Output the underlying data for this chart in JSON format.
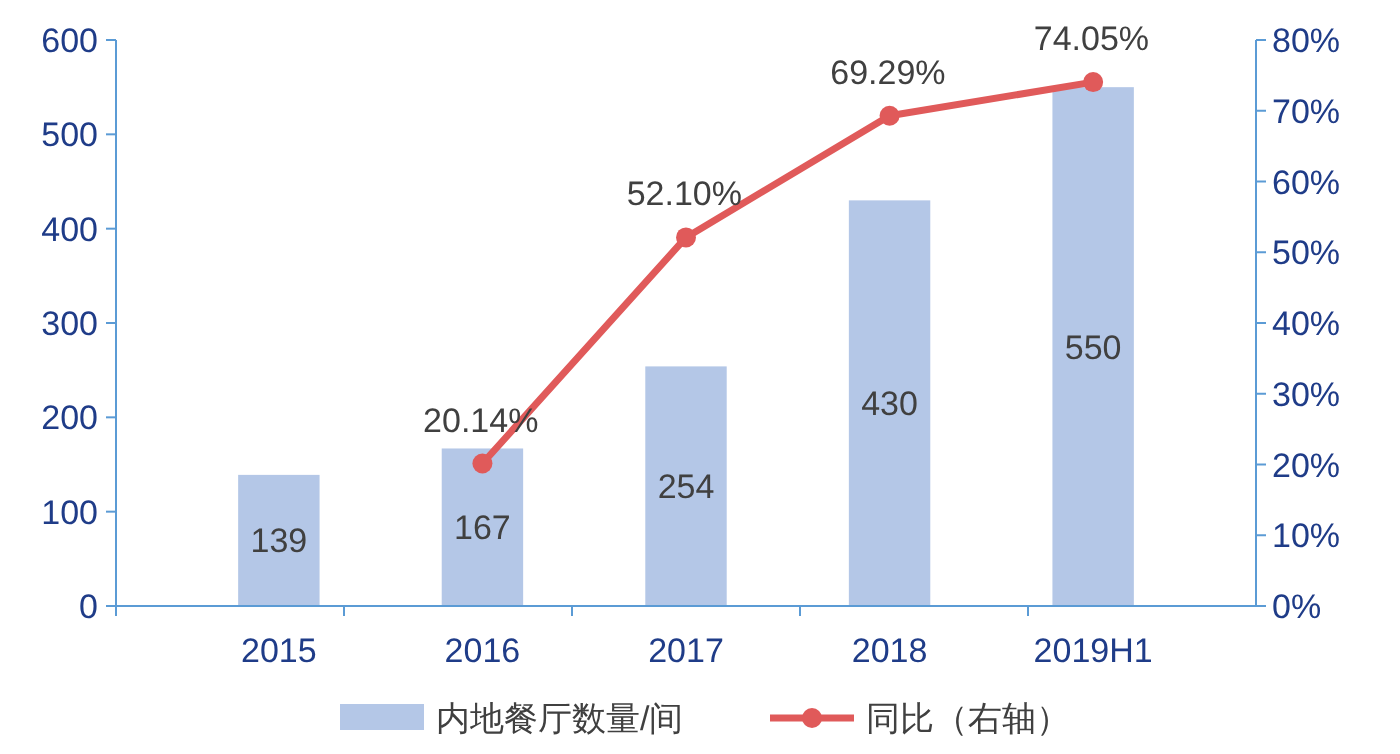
{
  "chart_data": {
    "type": "bar",
    "categories": [
      "2015",
      "2016",
      "2017",
      "2018",
      "2019H1"
    ],
    "series": [
      {
        "name": "内地餐厅数量/间",
        "color": "#b4c7e7",
        "values": [
          139,
          167,
          254,
          430,
          550
        ],
        "value_labels": [
          "139",
          "167",
          "254",
          "430",
          "550"
        ]
      },
      {
        "name": "同比（右轴）",
        "type": "line",
        "axis": "y2",
        "color": "#e05a5a",
        "values": [
          null,
          20.14,
          52.1,
          69.29,
          74.05
        ],
        "value_labels": [
          null,
          "20.14%",
          "52.10%",
          "69.29%",
          "74.05%"
        ]
      }
    ],
    "ylim": [
      0,
      600
    ],
    "yticks": [
      0,
      100,
      200,
      300,
      400,
      500,
      600
    ],
    "y2lim": [
      0,
      80
    ],
    "y2ticks": [
      {
        "value": 0,
        "label": "0%"
      },
      {
        "value": 10,
        "label": "10%"
      },
      {
        "value": 20,
        "label": "20%"
      },
      {
        "value": 30,
        "label": "30%"
      },
      {
        "value": 40,
        "label": "40%"
      },
      {
        "value": 50,
        "label": "50%"
      },
      {
        "value": 60,
        "label": "60%"
      },
      {
        "value": 70,
        "label": "70%"
      },
      {
        "value": 80,
        "label": "80%"
      }
    ],
    "grid": false,
    "legend": "bottom",
    "marker": "circle",
    "line_style": "solid"
  }
}
